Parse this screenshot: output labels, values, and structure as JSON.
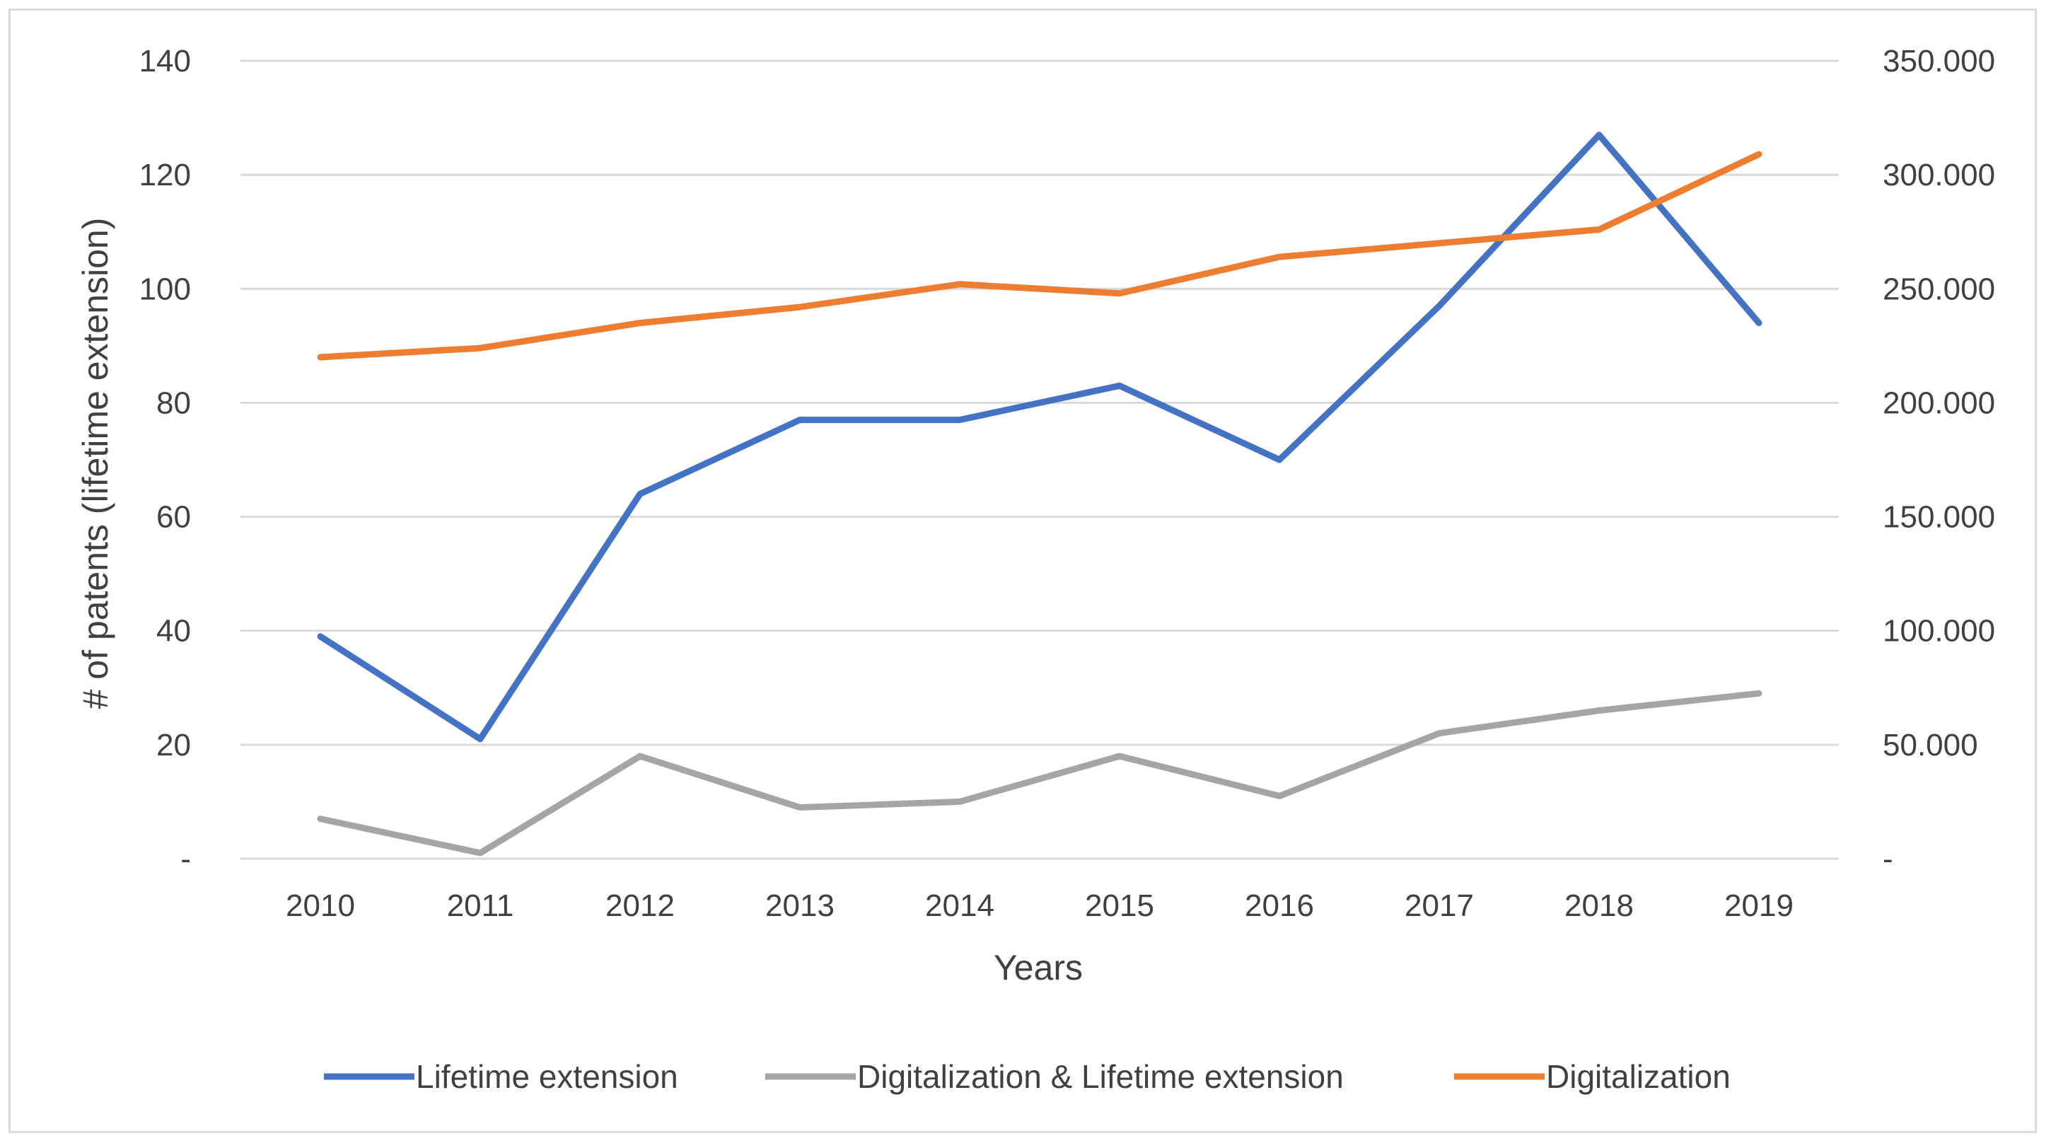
{
  "chart_data": {
    "type": "line",
    "title": "",
    "xlabel": "Years",
    "ylabel": "# of patents (lifetime extension)",
    "ylabel_right": "",
    "categories": [
      "2010",
      "2011",
      "2012",
      "2013",
      "2014",
      "2015",
      "2016",
      "2017",
      "2018",
      "2019"
    ],
    "left_axis": {
      "range": [
        0,
        140
      ],
      "ticks": [
        0,
        20,
        40,
        60,
        80,
        100,
        120,
        140
      ],
      "tick_labels": [
        "-",
        "20",
        "40",
        "60",
        "80",
        "100",
        "120",
        "140"
      ]
    },
    "right_axis": {
      "range": [
        0,
        350000
      ],
      "ticks": [
        0,
        50000,
        100000,
        150000,
        200000,
        250000,
        300000,
        350000
      ],
      "tick_labels": [
        "-",
        "50.000",
        "100.000",
        "150.000",
        "200.000",
        "250.000",
        "300.000",
        "350.000"
      ]
    },
    "series": [
      {
        "name": "Lifetime extension",
        "axis": "left",
        "color": "#4472c4",
        "values": [
          39,
          21,
          64,
          77,
          77,
          83,
          70,
          97,
          127,
          94
        ]
      },
      {
        "name": "Digitalization & Lifetime extension",
        "axis": "left",
        "color": "#a5a5a5",
        "values": [
          7,
          1,
          18,
          9,
          10,
          18,
          11,
          22,
          26,
          29
        ]
      },
      {
        "name": "Digitalization",
        "axis": "right",
        "color": "#ed7d31",
        "values": [
          220000,
          224000,
          235000,
          242000,
          252000,
          248000,
          264000,
          270000,
          276000,
          309000
        ]
      }
    ],
    "grid": true,
    "legend_position": "bottom"
  }
}
